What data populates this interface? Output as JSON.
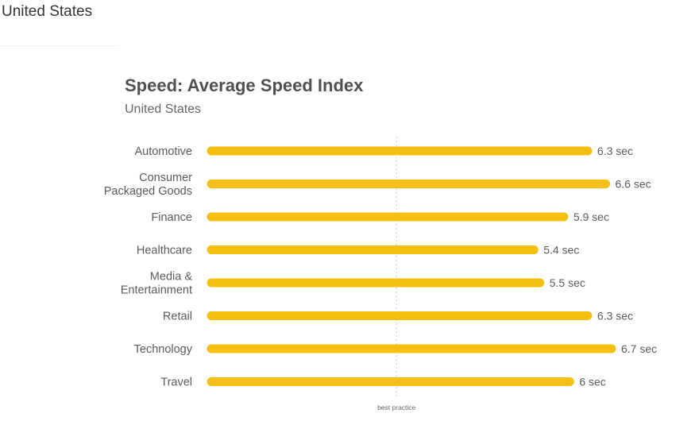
{
  "page": {
    "heading": "United States"
  },
  "colors": {
    "bar": "#F5BF12",
    "reference_line": "#c8c8c8",
    "text": "#5a5a5a"
  },
  "chart_data": {
    "type": "bar",
    "orientation": "horizontal",
    "title": "Speed: Average Speed Index",
    "subtitle": "United States",
    "categories": [
      [
        "Automotive"
      ],
      [
        "Consumer",
        "Packaged Goods"
      ],
      [
        "Finance"
      ],
      [
        "Healthcare"
      ],
      [
        "Media &",
        "Entertainment"
      ],
      [
        "Retail"
      ],
      [
        "Technology"
      ],
      [
        "Travel"
      ]
    ],
    "values": [
      6.3,
      6.6,
      5.9,
      5.4,
      5.5,
      6.3,
      6.7,
      6.0
    ],
    "value_labels": [
      "6.3 sec",
      "6.6 sec",
      "5.9 sec",
      "5.4 sec",
      "5.5 sec",
      "6.3 sec",
      "6.7 sec",
      "6 sec"
    ],
    "unit": "sec",
    "xlim": [
      0,
      6.7
    ],
    "reference_line": {
      "label": "best practice",
      "value": 3.1
    },
    "grid": false,
    "legend": "none"
  }
}
